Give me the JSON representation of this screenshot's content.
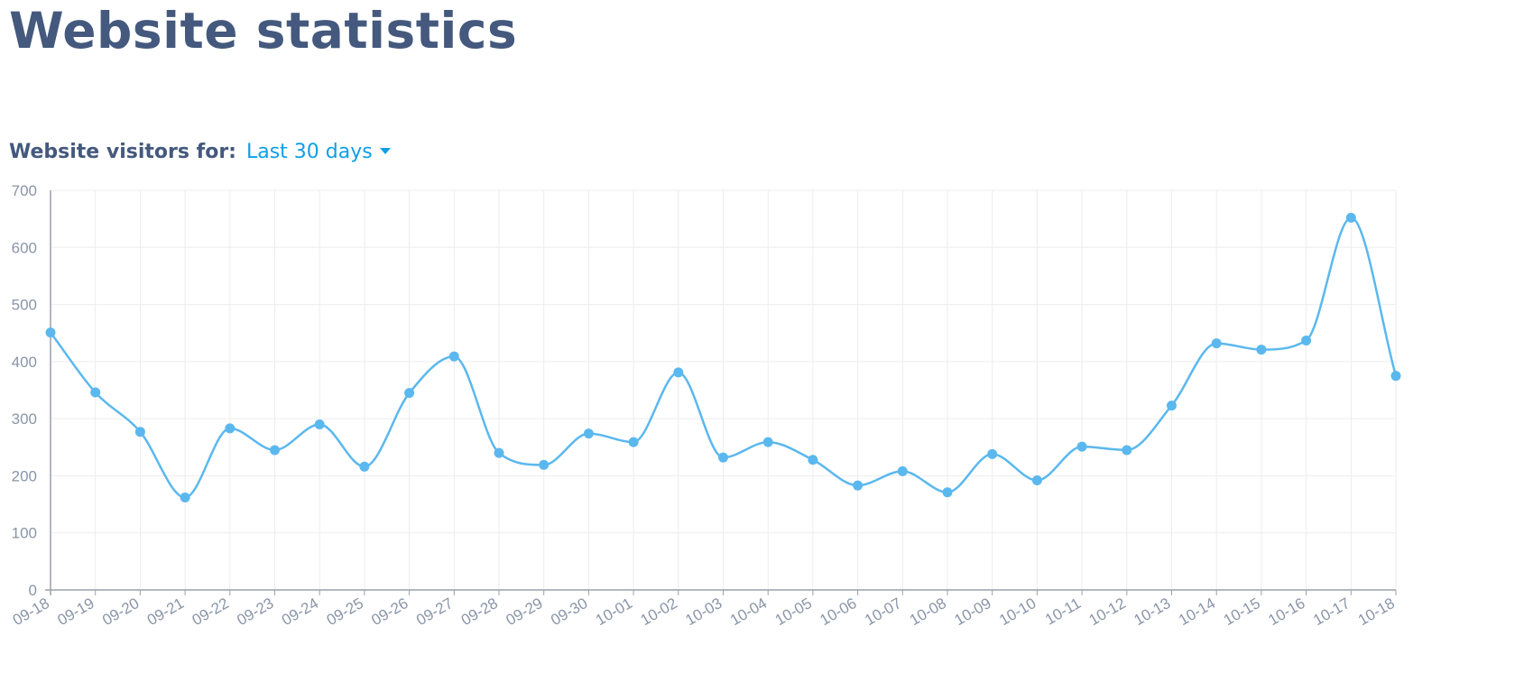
{
  "page": {
    "title": "Website statistics"
  },
  "filter": {
    "label": "Website visitors for:",
    "selected": "Last 30 days"
  },
  "colors": {
    "title": "#44597d",
    "accent": "#0f9ee6",
    "series": "#5bb8ee",
    "grid": "#ededed",
    "axis": "#9aa1ab",
    "tick_text": "#8a95a8"
  },
  "icons": {
    "dropdown": "caret-down-icon"
  },
  "chart_data": {
    "type": "line",
    "curve": "smooth",
    "markers": true,
    "grid": true,
    "ylim": [
      0,
      700
    ],
    "yticks": [
      0,
      100,
      200,
      300,
      400,
      500,
      600,
      700
    ],
    "categories": [
      "09-18",
      "09-19",
      "09-20",
      "09-21",
      "09-22",
      "09-23",
      "09-24",
      "09-25",
      "09-26",
      "09-27",
      "09-28",
      "09-29",
      "09-30",
      "10-01",
      "10-02",
      "10-03",
      "10-04",
      "10-05",
      "10-06",
      "10-07",
      "10-08",
      "10-09",
      "10-10",
      "10-11",
      "10-12",
      "10-13",
      "10-14",
      "10-15",
      "10-16",
      "10-17",
      "10-18"
    ],
    "series": [
      {
        "values": [
          451,
          346,
          277,
          162,
          283,
          245,
          290,
          216,
          345,
          409,
          240,
          219,
          274,
          259,
          381,
          232,
          259,
          228,
          183,
          208,
          171,
          238,
          192,
          251,
          245,
          323,
          432,
          421,
          437,
          652,
          375
        ]
      }
    ]
  }
}
